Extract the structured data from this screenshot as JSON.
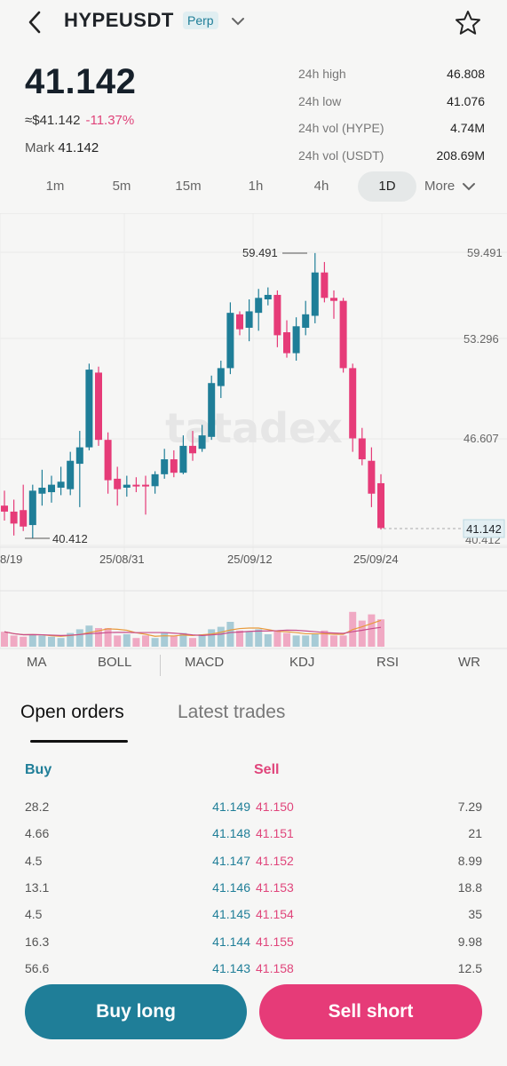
{
  "header": {
    "title": "HYPEUSDT",
    "badge": "Perp"
  },
  "ticker": {
    "price": "41.142",
    "fiat_price": "≈$41.142",
    "change": "-11.37%",
    "mark_label": "Mark",
    "mark_value": "41.142"
  },
  "stats": [
    {
      "label": "24h high",
      "value": "46.808"
    },
    {
      "label": "24h low",
      "value": "41.076"
    },
    {
      "label": "24h vol (HYPE)",
      "value": "4.74M"
    },
    {
      "label": "24h vol (USDT)",
      "value": "208.69M"
    }
  ],
  "timeframes": [
    "1m",
    "5m",
    "15m",
    "1h",
    "4h",
    "1D"
  ],
  "timeframe_active": "1D",
  "more_label": "More",
  "chart_data": {
    "type": "candlestick",
    "y_ticks": [
      "59.491",
      "53.296",
      "46.607",
      "40.412"
    ],
    "x_ticks": [
      "8/19",
      "25/08/31",
      "25/09/12",
      "25/09/24"
    ],
    "high_label": "59.491",
    "low_label": "40.412",
    "last_price_label": "41.142",
    "watermark": "tatadex",
    "ylim": [
      40.412,
      59.491
    ],
    "candles": [
      {
        "o": 42.6,
        "c": 42.2,
        "h": 43.6,
        "l": 41.6
      },
      {
        "o": 42.2,
        "c": 41.4,
        "h": 43.0,
        "l": 40.6
      },
      {
        "o": 42.3,
        "c": 41.2,
        "h": 44.0,
        "l": 40.9
      },
      {
        "o": 41.3,
        "c": 43.6,
        "h": 44.0,
        "l": 40.4
      },
      {
        "o": 43.4,
        "c": 43.8,
        "h": 45.0,
        "l": 42.6
      },
      {
        "o": 43.5,
        "c": 44.0,
        "h": 44.6,
        "l": 42.8
      },
      {
        "o": 43.8,
        "c": 44.2,
        "h": 45.2,
        "l": 43.3
      },
      {
        "o": 43.7,
        "c": 45.6,
        "h": 46.2,
        "l": 43.3
      },
      {
        "o": 45.4,
        "c": 46.5,
        "h": 47.6,
        "l": 42.5
      },
      {
        "o": 46.5,
        "c": 51.7,
        "h": 52.1,
        "l": 46.3
      },
      {
        "o": 51.5,
        "c": 47.0,
        "h": 51.9,
        "l": 46.6
      },
      {
        "o": 47.0,
        "c": 44.3,
        "h": 47.5,
        "l": 43.4
      },
      {
        "o": 44.4,
        "c": 43.7,
        "h": 45.2,
        "l": 42.6
      },
      {
        "o": 43.8,
        "c": 44.0,
        "h": 44.6,
        "l": 43.2
      },
      {
        "o": 44.0,
        "c": 43.9,
        "h": 44.5,
        "l": 43.5
      },
      {
        "o": 44.0,
        "c": 43.9,
        "h": 44.6,
        "l": 42.0
      },
      {
        "o": 43.9,
        "c": 44.7,
        "h": 44.9,
        "l": 43.4
      },
      {
        "o": 44.7,
        "c": 45.7,
        "h": 46.4,
        "l": 44.4
      },
      {
        "o": 45.7,
        "c": 44.8,
        "h": 46.3,
        "l": 44.5
      },
      {
        "o": 44.8,
        "c": 46.6,
        "h": 47.3,
        "l": 44.7
      },
      {
        "o": 46.6,
        "c": 46.1,
        "h": 47.6,
        "l": 45.6
      },
      {
        "o": 46.4,
        "c": 47.3,
        "h": 48.0,
        "l": 46.2
      },
      {
        "o": 47.2,
        "c": 50.8,
        "h": 51.3,
        "l": 47.0
      },
      {
        "o": 50.6,
        "c": 51.8,
        "h": 52.3,
        "l": 49.8
      },
      {
        "o": 51.8,
        "c": 55.5,
        "h": 56.2,
        "l": 51.4
      },
      {
        "o": 55.4,
        "c": 54.4,
        "h": 55.6,
        "l": 54.0
      },
      {
        "o": 54.5,
        "c": 55.6,
        "h": 56.4,
        "l": 53.6
      },
      {
        "o": 55.5,
        "c": 56.5,
        "h": 57.1,
        "l": 54.3
      },
      {
        "o": 56.4,
        "c": 56.7,
        "h": 57.2,
        "l": 56.0
      },
      {
        "o": 56.7,
        "c": 54.0,
        "h": 57.0,
        "l": 53.2
      },
      {
        "o": 54.2,
        "c": 52.8,
        "h": 55.0,
        "l": 52.5
      },
      {
        "o": 52.8,
        "c": 54.6,
        "h": 55.2,
        "l": 52.3
      },
      {
        "o": 54.5,
        "c": 55.4,
        "h": 56.3,
        "l": 54.0
      },
      {
        "o": 55.3,
        "c": 58.2,
        "h": 59.5,
        "l": 54.8
      },
      {
        "o": 58.2,
        "c": 56.5,
        "h": 58.9,
        "l": 56.2
      },
      {
        "o": 56.5,
        "c": 56.3,
        "h": 57.0,
        "l": 55.1
      },
      {
        "o": 56.3,
        "c": 51.8,
        "h": 56.5,
        "l": 51.5
      },
      {
        "o": 51.8,
        "c": 47.1,
        "h": 52.1,
        "l": 46.2
      },
      {
        "o": 47.1,
        "c": 45.7,
        "h": 47.8,
        "l": 45.3
      },
      {
        "o": 45.6,
        "c": 43.4,
        "h": 46.5,
        "l": 42.5
      },
      {
        "o": 44.1,
        "c": 41.1,
        "h": 44.7,
        "l": 41.0
      }
    ],
    "volumes": [
      0.6,
      0.45,
      0.4,
      0.5,
      0.45,
      0.4,
      0.35,
      0.55,
      0.7,
      0.85,
      0.75,
      0.75,
      0.45,
      0.5,
      0.35,
      0.45,
      0.35,
      0.55,
      0.45,
      0.55,
      0.35,
      0.5,
      0.7,
      0.8,
      1.0,
      0.65,
      0.6,
      0.7,
      0.5,
      0.65,
      0.55,
      0.45,
      0.45,
      0.5,
      0.65,
      0.45,
      0.45,
      1.4,
      1.05,
      1.3,
      1.1
    ]
  },
  "indicators": [
    "MA",
    "BOLL",
    "MACD",
    "KDJ",
    "RSI",
    "WR"
  ],
  "tabs": {
    "open_orders": "Open orders",
    "latest_trades": "Latest trades"
  },
  "orderbook": {
    "buy_label": "Buy",
    "sell_label": "Sell",
    "rows": [
      {
        "buy_qty": "28.2",
        "buy_price": "41.149",
        "sell_price": "41.150",
        "sell_qty": "7.29"
      },
      {
        "buy_qty": "4.66",
        "buy_price": "41.148",
        "sell_price": "41.151",
        "sell_qty": "21"
      },
      {
        "buy_qty": "4.5",
        "buy_price": "41.147",
        "sell_price": "41.152",
        "sell_qty": "8.99"
      },
      {
        "buy_qty": "13.1",
        "buy_price": "41.146",
        "sell_price": "41.153",
        "sell_qty": "18.8"
      },
      {
        "buy_qty": "4.5",
        "buy_price": "41.145",
        "sell_price": "41.154",
        "sell_qty": "35"
      },
      {
        "buy_qty": "16.3",
        "buy_price": "41.144",
        "sell_price": "41.155",
        "sell_qty": "9.98"
      },
      {
        "buy_qty": "56.6",
        "buy_price": "41.143",
        "sell_price": "41.158",
        "sell_qty": "12.5"
      }
    ]
  },
  "actions": {
    "buy": "Buy long",
    "sell": "Sell short"
  },
  "colors": {
    "up": "#1f7e98",
    "down": "#e63b78"
  }
}
